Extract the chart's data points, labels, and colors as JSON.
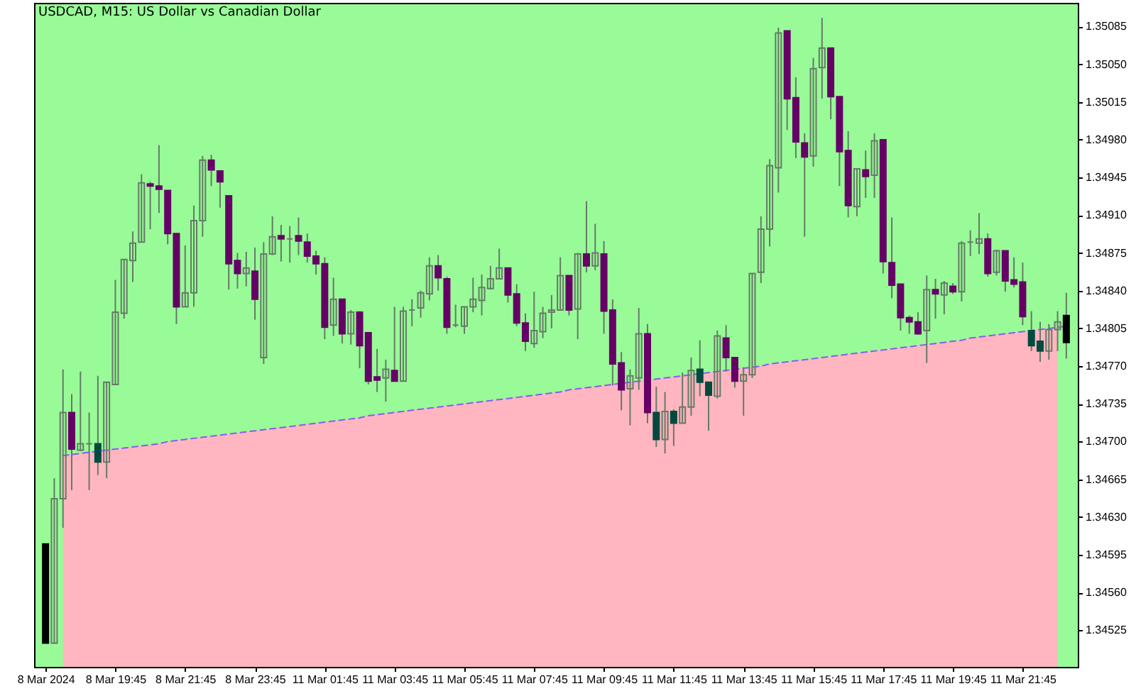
{
  "chart_data": {
    "type": "candlestick",
    "title": "USDCAD, M15: US Dollar vs Canadian Dollar",
    "categories": [
      "8 Mar 2024",
      null,
      null,
      null,
      null,
      null,
      null,
      null,
      "8 Mar 19:45",
      null,
      null,
      null,
      null,
      null,
      null,
      null,
      "8 Mar 21:45",
      null,
      null,
      null,
      null,
      null,
      null,
      null,
      "8 Mar 23:45",
      null,
      null,
      null,
      null,
      null,
      null,
      null,
      "11 Mar 01:45",
      null,
      null,
      null,
      null,
      null,
      null,
      null,
      "11 Mar 03:45",
      null,
      null,
      null,
      null,
      null,
      null,
      null,
      "11 Mar 05:45",
      null,
      null,
      null,
      null,
      null,
      null,
      null,
      "11 Mar 07:45",
      null,
      null,
      null,
      null,
      null,
      null,
      null,
      "11 Mar 09:45",
      null,
      null,
      null,
      null,
      null,
      null,
      null,
      "11 Mar 11:45",
      null,
      null,
      null,
      null,
      null,
      null,
      null,
      "11 Mar 13:45",
      null,
      null,
      null,
      null,
      null,
      null,
      null,
      "11 Mar 15:45",
      null,
      null,
      null,
      null,
      null,
      null,
      null,
      "11 Mar 17:45",
      null,
      null,
      null,
      null,
      null,
      null,
      null,
      "11 Mar 19:45",
      null,
      null,
      null,
      null,
      null,
      null,
      null,
      "11 Mar 21:45",
      null,
      null,
      null,
      null,
      null
    ],
    "ylim": [
      1.34491,
      1.35107
    ],
    "yticks": [
      1.34525,
      {
        "value": 1.3456,
        "label": "1.34560"
      },
      1.34595,
      {
        "value": 1.3463,
        "label": "1.34630"
      },
      1.34665,
      {
        "value": 1.347,
        "label": "1.34700"
      },
      1.34735,
      {
        "value": 1.3477,
        "label": "1.34770"
      },
      1.34805,
      {
        "value": 1.3484,
        "label": "1.34840"
      },
      1.34875,
      {
        "value": 1.3491,
        "label": "1.34910"
      },
      1.34945,
      {
        "value": 1.3498,
        "label": "1.34980"
      },
      1.35015,
      {
        "value": 1.3505,
        "label": "1.35050"
      },
      1.35085
    ],
    "series": [
      {
        "type": "area",
        "color": "#ffb6c1",
        "values": [
          null,
          null,
          1.34687,
          1.34688,
          1.34689,
          1.3469,
          1.34691,
          1.34692,
          1.34693,
          1.34694,
          1.34695,
          1.34696,
          1.34697,
          1.34698,
          1.347,
          1.34701,
          1.34702,
          1.34703,
          1.34704,
          1.34705,
          1.34706,
          1.34707,
          1.34708,
          1.34709,
          1.3471,
          1.34711,
          1.34712,
          1.34713,
          1.34714,
          1.34715,
          1.34716,
          1.34717,
          1.34718,
          1.34719,
          1.3472,
          1.34721,
          1.34722,
          1.34724,
          1.34725,
          1.34726,
          1.34727,
          1.34728,
          1.34729,
          1.3473,
          1.34731,
          1.34732,
          1.34733,
          1.34734,
          1.34735,
          1.34736,
          1.34737,
          1.34738,
          1.34739,
          1.3474,
          1.34741,
          1.34742,
          1.34743,
          1.34744,
          1.34745,
          1.34746,
          1.34748,
          1.34749,
          1.3475,
          1.34751,
          1.34752,
          1.34753,
          null,
          1.34755,
          1.34756,
          null,
          1.34758,
          1.34759,
          1.3476,
          1.34761,
          1.34762,
          1.34763,
          1.34764,
          1.34765,
          1.34766,
          null,
          1.34768,
          1.34769,
          1.3477,
          1.34772,
          1.34773,
          1.34774,
          1.34775,
          1.34776,
          1.34777,
          1.34778,
          1.34779,
          1.3478,
          1.34781,
          1.34782,
          1.34783,
          1.34784,
          1.34785,
          1.34786,
          1.34787,
          1.34788,
          1.34789,
          1.3479,
          1.34791,
          1.34792,
          1.34793,
          1.34794,
          1.34796,
          1.34797,
          1.34798,
          1.34799,
          1.348,
          1.34801,
          1.34802,
          1.34803,
          1.34804,
          1.34805,
          1.34806,
          null
        ]
      },
      {
        "type": "line",
        "color": "#8a5cf0",
        "line_style": "dashed",
        "values": [
          null,
          null,
          1.34687,
          1.34688,
          1.34689,
          1.3469,
          1.34691,
          1.34692,
          1.34693,
          1.34694,
          1.34695,
          1.34696,
          1.34697,
          1.34698,
          1.347,
          1.34701,
          1.34702,
          1.34703,
          1.34704,
          1.34705,
          1.34706,
          1.34707,
          1.34708,
          1.34709,
          1.3471,
          1.34711,
          1.34712,
          1.34713,
          1.34714,
          1.34715,
          1.34716,
          1.34717,
          1.34718,
          1.34719,
          1.3472,
          1.34721,
          1.34722,
          1.34724,
          1.34725,
          1.34726,
          1.34727,
          1.34728,
          1.34729,
          1.3473,
          1.34731,
          1.34732,
          1.34733,
          1.34734,
          1.34735,
          1.34736,
          1.34737,
          1.34738,
          1.34739,
          1.3474,
          1.34741,
          1.34742,
          1.34743,
          1.34744,
          1.34745,
          1.34746,
          1.34748,
          1.34749,
          1.3475,
          1.34751,
          1.34752,
          1.34753,
          1.34754,
          1.34755,
          1.34756,
          1.34757,
          1.34758,
          1.34759,
          1.3476,
          1.34761,
          1.34762,
          1.34763,
          1.34764,
          1.34765,
          1.34766,
          1.34767,
          1.34768,
          1.34769,
          1.3477,
          1.34772,
          1.34773,
          1.34774,
          1.34775,
          1.34776,
          1.34777,
          1.34778,
          1.34779,
          1.3478,
          1.34781,
          1.34782,
          1.34783,
          1.34784,
          1.34785,
          1.34786,
          1.34787,
          1.34788,
          1.34789,
          1.3479,
          1.34791,
          1.34792,
          1.34793,
          1.34794,
          1.34796,
          1.34797,
          1.34798,
          1.34799,
          1.348,
          1.34801,
          1.34802,
          1.34803,
          1.34804,
          1.34805,
          1.34806,
          1.34807
        ]
      },
      {
        "color": "#667a66",
        "colors": [
          "#000000",
          null,
          null,
          "#660066",
          null,
          null,
          "#004a3e",
          null,
          null,
          null,
          null,
          null,
          "#660066",
          "#660066",
          "#660066",
          "#660066",
          null,
          null,
          null,
          "#660066",
          "#660066",
          "#660066",
          "#660066",
          null,
          "#660066",
          null,
          null,
          "#660066",
          null,
          "#660066",
          "#660066",
          "#660066",
          "#660066",
          null,
          "#660066",
          null,
          "#660066",
          "#660066",
          "#660066",
          null,
          "#660066",
          null,
          null,
          null,
          null,
          "#660066",
          "#660066",
          null,
          null,
          null,
          null,
          null,
          null,
          "#660066",
          "#660066",
          "#660066",
          null,
          null,
          null,
          null,
          "#660066",
          null,
          "#660066",
          null,
          "#660066",
          "#660066",
          "#660066",
          null,
          null,
          "#660066",
          "#004a3e",
          null,
          "#004a3e",
          null,
          null,
          "#004a3e",
          "#004a3e",
          null,
          "#660066",
          "#660066",
          null,
          null,
          null,
          null,
          null,
          "#660066",
          "#660066",
          "#660066",
          null,
          null,
          "#660066",
          "#660066",
          "#660066",
          null,
          "#660066",
          null,
          "#660066",
          "#660066",
          "#660066",
          "#660066",
          "#660066",
          null,
          "#660066",
          null,
          "#660066",
          null,
          null,
          null,
          "#660066",
          null,
          "#660066",
          "#660066",
          "#660066",
          "#004a3e",
          "#004a3e",
          null,
          null,
          "#000000"
        ],
        "ohlc": [
          [
            1.34605,
            1.34605,
            1.34513,
            1.34513
          ],
          [
            1.34513,
            1.34666,
            1.34513,
            1.34647
          ],
          [
            1.34647,
            1.34767,
            1.3462,
            1.34727
          ],
          [
            1.34727,
            1.34744,
            1.34655,
            1.34693
          ],
          [
            1.34692,
            1.34765,
            1.34691,
            1.34698
          ],
          [
            1.34698,
            1.34727,
            1.34655,
            1.34698
          ],
          [
            1.34698,
            1.34761,
            1.34669,
            1.34681
          ],
          [
            1.34681,
            1.34755,
            1.34666,
            1.34755
          ],
          [
            1.34753,
            1.3485,
            1.34753,
            1.3482
          ],
          [
            1.34819,
            1.34869,
            1.34814,
            1.34869
          ],
          [
            1.34868,
            1.34895,
            1.34848,
            1.34884
          ],
          [
            1.34885,
            1.34948,
            1.34885,
            1.3494
          ],
          [
            1.34939,
            1.34941,
            1.34897,
            1.34937
          ],
          [
            1.34937,
            1.34975,
            1.34912,
            1.34934
          ],
          [
            1.34933,
            1.34933,
            1.34883,
            1.34893
          ],
          [
            1.34893,
            1.34893,
            1.34809,
            1.34825
          ],
          [
            1.34825,
            1.34882,
            1.34825,
            1.34838
          ],
          [
            1.34838,
            1.34919,
            1.34825,
            1.34905
          ],
          [
            1.34905,
            1.34965,
            1.3489,
            1.34961
          ],
          [
            1.34961,
            1.34966,
            1.34937,
            1.34952
          ],
          [
            1.34951,
            1.34951,
            1.34917,
            1.34941
          ],
          [
            1.34928,
            1.34928,
            1.34841,
            1.34865
          ],
          [
            1.34868,
            1.34875,
            1.34842,
            1.34856
          ],
          [
            1.34856,
            1.34876,
            1.34844,
            1.34861
          ],
          [
            1.34858,
            1.3488,
            1.34813,
            1.34832
          ],
          [
            1.34778,
            1.34885,
            1.34772,
            1.34874
          ],
          [
            1.34874,
            1.34909,
            1.34873,
            1.3489
          ],
          [
            1.34891,
            1.34901,
            1.34867,
            1.34888
          ],
          [
            1.34888,
            1.349,
            1.34866,
            1.34888
          ],
          [
            1.34891,
            1.34908,
            1.34873,
            1.34886
          ],
          [
            1.34885,
            1.34893,
            1.34866,
            1.34872
          ],
          [
            1.34872,
            1.34877,
            1.34855,
            1.34865
          ],
          [
            1.34865,
            1.34871,
            1.34795,
            1.34806
          ],
          [
            1.34808,
            1.34852,
            1.34798,
            1.34832
          ],
          [
            1.34832,
            1.34832,
            1.34791,
            1.348
          ],
          [
            1.348,
            1.34822,
            1.3479,
            1.3482
          ],
          [
            1.3482,
            1.34821,
            1.34768,
            1.34789
          ],
          [
            1.34801,
            1.34801,
            1.34753,
            1.34756
          ],
          [
            1.3476,
            1.34786,
            1.34746,
            1.34757
          ],
          [
            1.34759,
            1.34776,
            1.34737,
            1.34767
          ],
          [
            1.34766,
            1.34825,
            1.34756,
            1.34756
          ],
          [
            1.34756,
            1.34825,
            1.34756,
            1.34821
          ],
          [
            1.34822,
            1.34832,
            1.34807,
            1.34822
          ],
          [
            1.34824,
            1.3484,
            1.34815,
            1.34838
          ],
          [
            1.34837,
            1.34871,
            1.34831,
            1.34863
          ],
          [
            1.34863,
            1.34873,
            1.3484,
            1.34852
          ],
          [
            1.34851,
            1.34853,
            1.348,
            1.34806
          ],
          [
            1.34808,
            1.34827,
            1.34806,
            1.34808
          ],
          [
            1.34807,
            1.34825,
            1.348,
            1.34825
          ],
          [
            1.34825,
            1.34852,
            1.3482,
            1.34832
          ],
          [
            1.34831,
            1.34855,
            1.34817,
            1.34843
          ],
          [
            1.34842,
            1.34863,
            1.34841,
            1.34851
          ],
          [
            1.34851,
            1.34879,
            1.34851,
            1.34861
          ],
          [
            1.34861,
            1.34861,
            1.34829,
            1.34836
          ],
          [
            1.34837,
            1.34846,
            1.34807,
            1.3481
          ],
          [
            1.3481,
            1.34819,
            1.34784,
            1.34793
          ],
          [
            1.34791,
            1.34839,
            1.34787,
            1.34803
          ],
          [
            1.34802,
            1.34825,
            1.34796,
            1.34819
          ],
          [
            1.3482,
            1.34836,
            1.34805,
            1.34822
          ],
          [
            1.34822,
            1.34871,
            1.34822,
            1.34854
          ],
          [
            1.34854,
            1.34854,
            1.34817,
            1.34822
          ],
          [
            1.34823,
            1.34875,
            1.34795,
            1.34874
          ],
          [
            1.34874,
            1.34923,
            1.34857,
            1.34863
          ],
          [
            1.34863,
            1.34902,
            1.34859,
            1.34875
          ],
          [
            1.34874,
            1.34886,
            1.348,
            1.34821
          ],
          [
            1.34822,
            1.34832,
            1.34752,
            1.34772
          ],
          [
            1.34773,
            1.34783,
            1.34729,
            1.34748
          ],
          [
            1.34749,
            1.34767,
            1.34715,
            1.34761
          ],
          [
            1.34759,
            1.34824,
            1.34748,
            1.348
          ],
          [
            1.348,
            1.34809,
            1.34717,
            1.34727
          ],
          [
            1.34727,
            1.34751,
            1.34695,
            1.34702
          ],
          [
            1.34702,
            1.34746,
            1.34689,
            1.34728
          ],
          [
            1.34728,
            1.3473,
            1.34696,
            1.34717
          ],
          [
            1.34717,
            1.34764,
            1.34717,
            1.34732
          ],
          [
            1.34732,
            1.34778,
            1.34724,
            1.34766
          ],
          [
            1.34767,
            1.34794,
            1.34742,
            1.34755
          ],
          [
            1.34755,
            1.34755,
            1.3471,
            1.34743
          ],
          [
            1.34742,
            1.34803,
            1.3474,
            1.34798
          ],
          [
            1.34796,
            1.34808,
            1.34765,
            1.34778
          ],
          [
            1.34778,
            1.34778,
            1.3475,
            1.34756
          ],
          [
            1.34756,
            1.34769,
            1.34724,
            1.34762
          ],
          [
            1.34762,
            1.34856,
            1.34759,
            1.34856
          ],
          [
            1.34857,
            1.34909,
            1.34847,
            1.34897
          ],
          [
            1.34897,
            1.34962,
            1.34881,
            1.34956
          ],
          [
            1.34954,
            1.35084,
            1.34931,
            1.35079
          ],
          [
            1.35081,
            1.35081,
            1.34989,
            1.35018
          ],
          [
            1.35019,
            1.35038,
            1.34963,
            1.34978
          ],
          [
            1.34977,
            1.34986,
            1.3489,
            1.34964
          ],
          [
            1.34965,
            1.35056,
            1.34955,
            1.35046
          ],
          [
            1.35047,
            1.35093,
            1.35018,
            1.35065
          ],
          [
            1.35065,
            1.35065,
            1.34999,
            1.3502
          ],
          [
            1.3502,
            1.3502,
            1.34937,
            1.34969
          ],
          [
            1.3497,
            1.34988,
            1.34908,
            1.34919
          ],
          [
            1.34918,
            1.34953,
            1.34909,
            1.34953
          ],
          [
            1.34952,
            1.3497,
            1.34926,
            1.34946
          ],
          [
            1.34947,
            1.34986,
            1.34926,
            1.34979
          ],
          [
            1.3498,
            1.3498,
            1.34856,
            1.34867
          ],
          [
            1.34866,
            1.34908,
            1.34833,
            1.34845
          ],
          [
            1.34846,
            1.34846,
            1.34803,
            1.34815
          ],
          [
            1.34815,
            1.34817,
            1.348,
            1.34811
          ],
          [
            1.34811,
            1.3482,
            1.34799,
            1.348
          ],
          [
            1.34803,
            1.34854,
            1.34773,
            1.34841
          ],
          [
            1.34841,
            1.34851,
            1.34814,
            1.34837
          ],
          [
            1.34836,
            1.34849,
            1.34818,
            1.34847
          ],
          [
            1.34844,
            1.34847,
            1.34837,
            1.34839
          ],
          [
            1.34839,
            1.34886,
            1.3483,
            1.34884
          ],
          [
            1.34885,
            1.34896,
            1.34872,
            1.34885
          ],
          [
            1.34884,
            1.34912,
            1.34874,
            1.34888
          ],
          [
            1.34888,
            1.34893,
            1.34853,
            1.34856
          ],
          [
            1.34857,
            1.34878,
            1.34854,
            1.34877
          ],
          [
            1.34877,
            1.34877,
            1.34839,
            1.34849
          ],
          [
            1.3485,
            1.34871,
            1.34843,
            1.34846
          ],
          [
            1.34848,
            1.34866,
            1.34808,
            1.34816
          ],
          [
            1.34803,
            1.34821,
            1.34784,
            1.34789
          ],
          [
            1.34793,
            1.34811,
            1.34774,
            1.34784
          ],
          [
            1.34784,
            1.34809,
            1.34776,
            1.34804
          ],
          [
            1.34804,
            1.34821,
            1.34784,
            1.34811
          ],
          [
            1.34817,
            1.34838,
            1.34777,
            1.34792
          ]
        ]
      }
    ]
  }
}
